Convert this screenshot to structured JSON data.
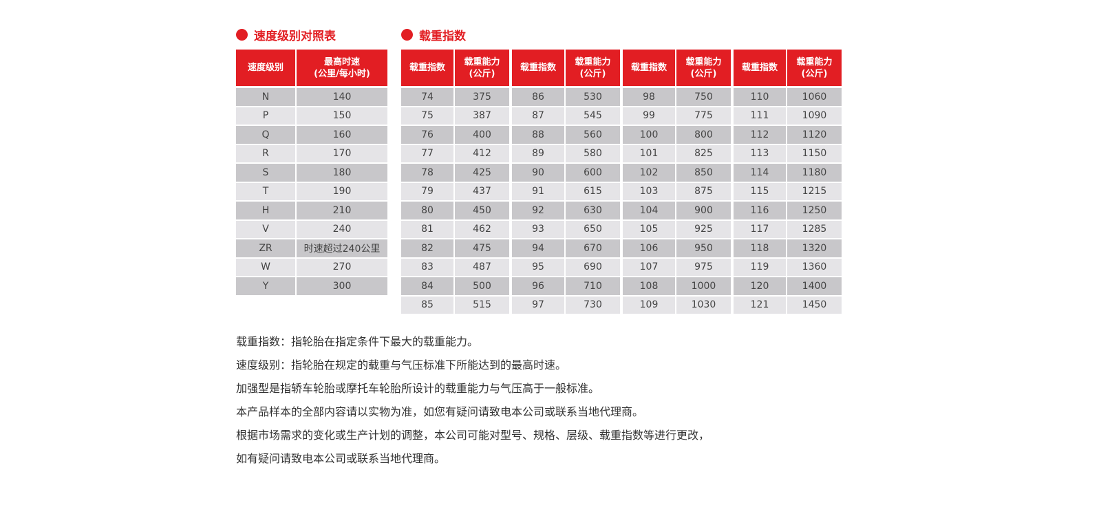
{
  "speed_table": {
    "title": "速度级别对照表",
    "headers": [
      "速度级别",
      "最高时速",
      "(公里/每小时)"
    ],
    "rows": [
      [
        "N",
        "140"
      ],
      [
        "P",
        "150"
      ],
      [
        "Q",
        "160"
      ],
      [
        "R",
        "170"
      ],
      [
        "S",
        "180"
      ],
      [
        "T",
        "190"
      ],
      [
        "H",
        "210"
      ],
      [
        "V",
        "240"
      ],
      [
        "ZR",
        "时速超过240公里"
      ],
      [
        "W",
        "270"
      ],
      [
        "Y",
        "300"
      ]
    ]
  },
  "load_table": {
    "title": "载重指数",
    "headers": [
      "载重指数",
      "载重能力",
      "(公斤)"
    ],
    "groups": [
      [
        [
          "74",
          "375"
        ],
        [
          "75",
          "387"
        ],
        [
          "76",
          "400"
        ],
        [
          "77",
          "412"
        ],
        [
          "78",
          "425"
        ],
        [
          "79",
          "437"
        ],
        [
          "80",
          "450"
        ],
        [
          "81",
          "462"
        ],
        [
          "82",
          "475"
        ],
        [
          "83",
          "487"
        ],
        [
          "84",
          "500"
        ],
        [
          "85",
          "515"
        ]
      ],
      [
        [
          "86",
          "530"
        ],
        [
          "87",
          "545"
        ],
        [
          "88",
          "560"
        ],
        [
          "89",
          "580"
        ],
        [
          "90",
          "600"
        ],
        [
          "91",
          "615"
        ],
        [
          "92",
          "630"
        ],
        [
          "93",
          "650"
        ],
        [
          "94",
          "670"
        ],
        [
          "95",
          "690"
        ],
        [
          "96",
          "710"
        ],
        [
          "97",
          "730"
        ]
      ],
      [
        [
          "98",
          "750"
        ],
        [
          "99",
          "775"
        ],
        [
          "100",
          "800"
        ],
        [
          "101",
          "825"
        ],
        [
          "102",
          "850"
        ],
        [
          "103",
          "875"
        ],
        [
          "104",
          "900"
        ],
        [
          "105",
          "925"
        ],
        [
          "106",
          "950"
        ],
        [
          "107",
          "975"
        ],
        [
          "108",
          "1000"
        ],
        [
          "109",
          "1030"
        ]
      ],
      [
        [
          "110",
          "1060"
        ],
        [
          "111",
          "1090"
        ],
        [
          "112",
          "1120"
        ],
        [
          "113",
          "1150"
        ],
        [
          "114",
          "1180"
        ],
        [
          "115",
          "1215"
        ],
        [
          "116",
          "1250"
        ],
        [
          "117",
          "1285"
        ],
        [
          "118",
          "1320"
        ],
        [
          "119",
          "1360"
        ],
        [
          "120",
          "1400"
        ],
        [
          "121",
          "1450"
        ]
      ]
    ]
  },
  "notes": [
    "载重指数：指轮胎在指定条件下最大的载重能力。",
    "速度级别：指轮胎在规定的载重与气压标准下所能达到的最高时速。",
    "加强型是指轿车轮胎或摩托车轮胎所设计的载重能力与气压高于一般标准。",
    "本产品样本的全部内容请以实物为准，如您有疑问请致电本公司或联系当地代理商。",
    "根据市场需求的变化或生产计划的调整，本公司可能对型号、规格、层级、载重指数等进行更改，",
    "如有疑问请致电本公司或联系当地代理商。"
  ],
  "colors": {
    "accent": "#e21e23",
    "row_dark": "#c8c7ca",
    "row_light": "#e5e4e7"
  }
}
